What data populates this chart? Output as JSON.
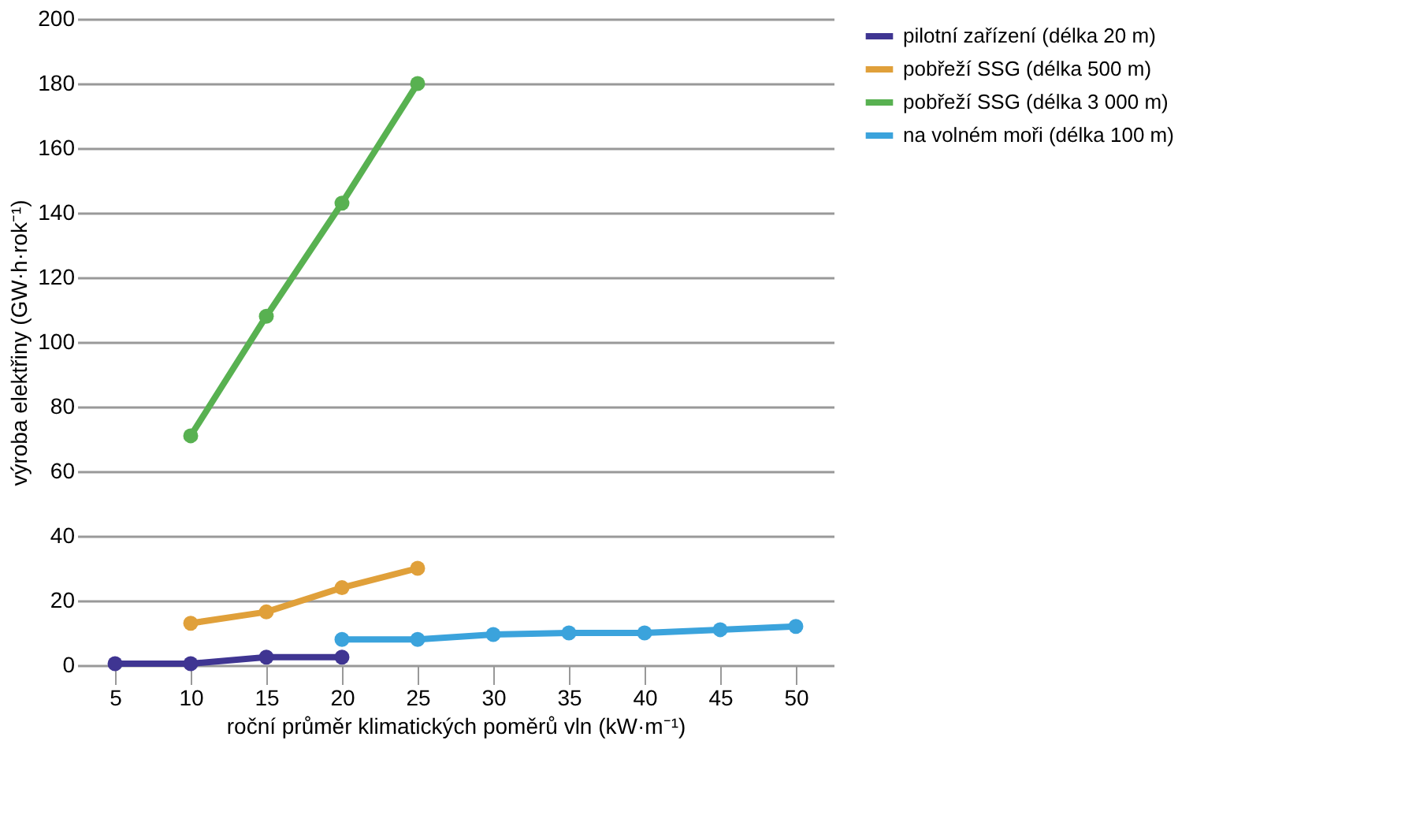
{
  "chart_data": {
    "type": "line",
    "xlabel": "roční průměr klimatických poměrů vln (kW·m⁻¹)",
    "ylabel": "výroba elektřiny (GW·h·rok⁻¹)",
    "xlim": [
      2.5,
      52.5
    ],
    "xticks": [
      5,
      10,
      15,
      20,
      25,
      30,
      35,
      40,
      45,
      50
    ],
    "ylim": [
      0,
      200
    ],
    "yticks": [
      0,
      20,
      40,
      60,
      80,
      100,
      120,
      140,
      160,
      180,
      200
    ],
    "grid": "y",
    "legend": "right",
    "marker": "circle",
    "line_style": "solid",
    "series": [
      {
        "name": "pilotní zařízení (délka 20 m)",
        "color": "#3f3592",
        "x": [
          5,
          10,
          15,
          20
        ],
        "values": [
          0.5,
          0.5,
          2.5,
          2.5
        ]
      },
      {
        "name": "pobřeží SSG (délka 500 m)",
        "color": "#e0a03a",
        "x": [
          10,
          15,
          20,
          25
        ],
        "values": [
          13,
          16.5,
          24,
          30
        ]
      },
      {
        "name": "pobřeží SSG (délka 3 000 m)",
        "color": "#58b151",
        "x": [
          10,
          15,
          20,
          25
        ],
        "values": [
          71,
          108,
          143,
          180
        ]
      },
      {
        "name": "na volném moři (délka 100 m)",
        "color": "#3ba3dc",
        "x": [
          20,
          25,
          30,
          35,
          40,
          45,
          50
        ],
        "values": [
          8,
          8,
          9.5,
          10,
          10,
          11,
          12
        ]
      }
    ]
  }
}
